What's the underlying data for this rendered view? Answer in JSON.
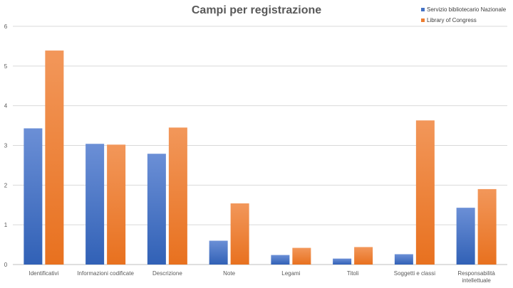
{
  "chart_data": {
    "type": "bar",
    "title": "Campi per registrazione",
    "xlabel": "",
    "ylabel": "",
    "ylim": [
      0,
      6
    ],
    "yticks": [
      0,
      1,
      2,
      3,
      4,
      5,
      6
    ],
    "grid": true,
    "legend_position": "top-right",
    "categories": [
      "Identificativi",
      "Informazioni codificate",
      "Descrizione",
      "Note",
      "Legami",
      "Titoli",
      "Soggetti e classi",
      "Responsabilità intellettuale"
    ],
    "series": [
      {
        "name": "Servizio bibliotecario Nazionale",
        "color": "#4472C4",
        "values": [
          3.43,
          3.04,
          2.79,
          0.6,
          0.24,
          0.15,
          0.26,
          1.43
        ]
      },
      {
        "name": "Library of Congress",
        "color": "#ED7D31",
        "values": [
          5.39,
          3.02,
          3.45,
          1.54,
          0.42,
          0.44,
          3.63,
          1.9
        ]
      }
    ]
  }
}
